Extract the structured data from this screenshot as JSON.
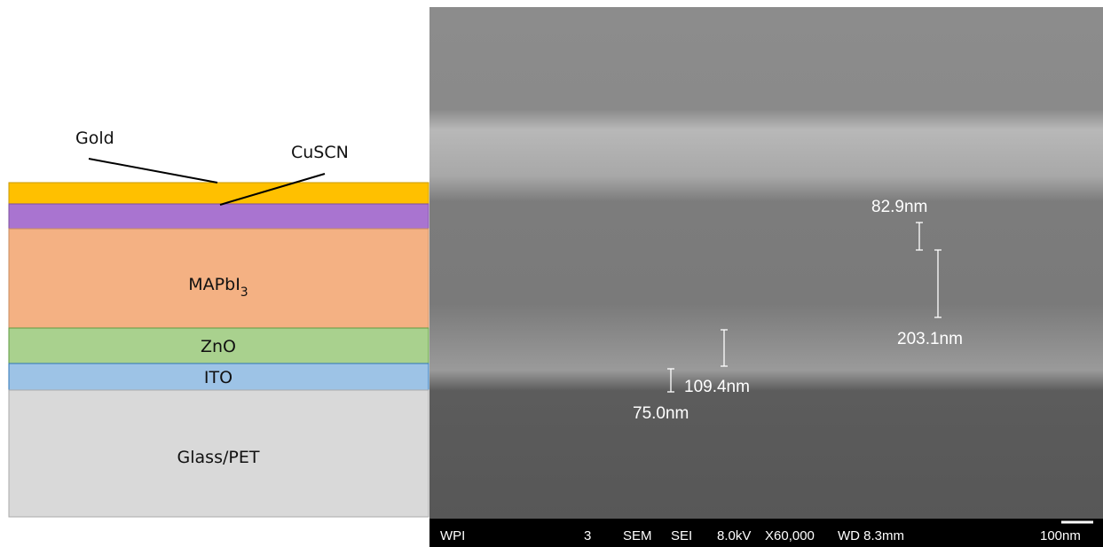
{
  "diagram": {
    "layers": [
      {
        "label": "Gold"
      },
      {
        "label": "CuSCN"
      },
      {
        "label": "MAPbI",
        "subscript": "3"
      },
      {
        "label": "ZnO"
      },
      {
        "label": "ITO"
      },
      {
        "label": "Glass/PET"
      }
    ],
    "sem": {
      "measurements": [
        "82.9nm",
        "203.1nm",
        "109.4nm",
        "75.0nm"
      ],
      "info_bar": [
        "WPI",
        "3",
        "SEM",
        "SEI",
        "8.0kV",
        "X60,000",
        "WD 8.3mm",
        "100nm"
      ]
    }
  }
}
